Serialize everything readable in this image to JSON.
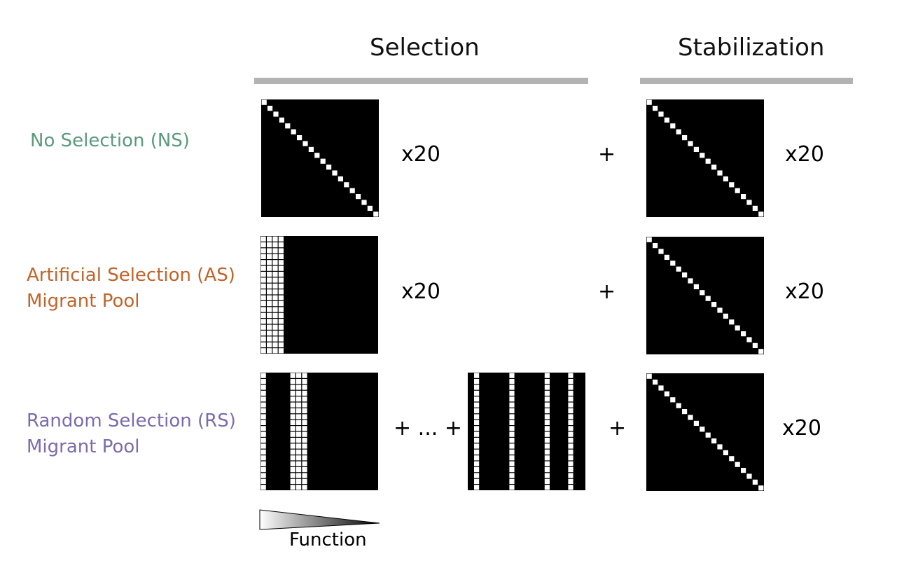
{
  "headers": {
    "selection": "Selection",
    "stabilization": "Stabilization"
  },
  "rows": [
    {
      "lines": [
        "No Selection (NS)"
      ],
      "color": "#5a9a7c",
      "selection_multiplier": "x20",
      "stabilization_multiplier": "x20"
    },
    {
      "lines": [
        "Artificial Selection (AS)",
        "Migrant Pool"
      ],
      "color": "#c0642a",
      "selection_multiplier": "x20",
      "stabilization_multiplier": "x20"
    },
    {
      "lines": [
        "Random Selection (RS)",
        "Migrant Pool"
      ],
      "color": "#7a6cae",
      "selection_sequence": "+ ... +",
      "stabilization_multiplier": "x20"
    }
  ],
  "plus": "+",
  "function_label": "Function",
  "matrix_size": 20
}
